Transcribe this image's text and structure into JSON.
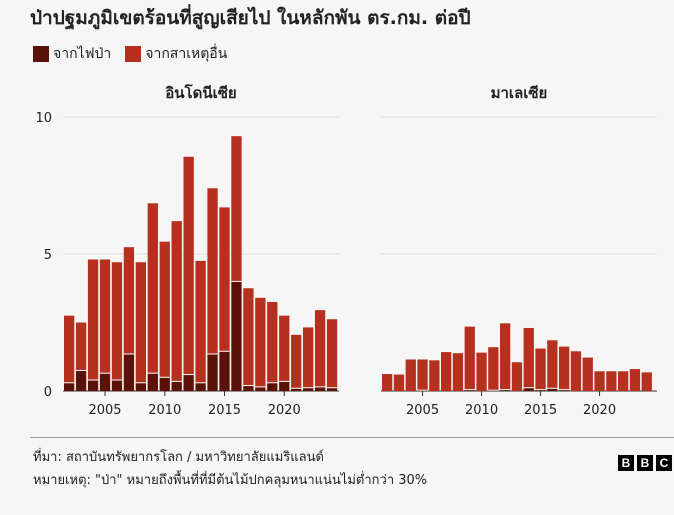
{
  "title": "ป่าปฐมภูมิเขตร้อนที่สูญเสียไป ในหลักพัน ตร.กม. ต่อปี",
  "legend": {
    "fire_label": "จากไฟป่า",
    "other_label": "จากสาเหตุอื่น"
  },
  "colors": {
    "fire": "#5a1208",
    "other": "#b5301e",
    "divider": "#ffffff",
    "grid": "#dedede"
  },
  "footer": {
    "source": "ที่มา: สถาบันทรัพยากรโลก / มหาวิทยาลัยแมริแลนด์",
    "note": "หมายเหตุ: \"ป่า\" หมายถึงพื้นที่ที่มีต้นไม้ปกคลุมหนาแน่นไม่ต่ำกว่า 30%",
    "logo_letters": [
      "B",
      "B",
      "C"
    ]
  },
  "chart_data": [
    {
      "type": "bar",
      "stacked": true,
      "title": "อินโดนีเซีย",
      "x": [
        2002,
        2003,
        2004,
        2005,
        2006,
        2007,
        2008,
        2009,
        2010,
        2011,
        2012,
        2013,
        2014,
        2015,
        2016,
        2017,
        2018,
        2019,
        2020,
        2021,
        2022,
        2023,
        2024
      ],
      "series": [
        {
          "name": "จากไฟป่า",
          "values": [
            0.3,
            0.75,
            0.4,
            0.65,
            0.4,
            1.35,
            0.3,
            0.65,
            0.5,
            0.35,
            0.6,
            0.3,
            1.35,
            1.45,
            4.0,
            0.2,
            0.15,
            0.3,
            0.35,
            0.1,
            0.12,
            0.15,
            0.12
          ]
        },
        {
          "name": "จากสาเหตุอื่น",
          "values": [
            2.45,
            1.75,
            4.4,
            4.15,
            4.3,
            3.9,
            4.4,
            6.2,
            4.95,
            5.85,
            7.95,
            4.45,
            6.05,
            5.25,
            5.3,
            3.55,
            3.25,
            2.95,
            2.4,
            1.95,
            2.2,
            2.8,
            2.5
          ]
        }
      ],
      "ylim": [
        0,
        10
      ],
      "yticks": [
        0,
        5,
        10
      ],
      "xticks": [
        2005,
        2010,
        2015,
        2020
      ],
      "grid": true
    },
    {
      "type": "bar",
      "stacked": true,
      "title": "มาเลเซีย",
      "x": [
        2002,
        2003,
        2004,
        2005,
        2006,
        2007,
        2008,
        2009,
        2010,
        2011,
        2012,
        2013,
        2014,
        2015,
        2016,
        2017,
        2018,
        2019,
        2020,
        2021,
        2022,
        2023,
        2024
      ],
      "series": [
        {
          "name": "จากไฟป่า",
          "values": [
            0.0,
            0.0,
            0.0,
            0.03,
            0.0,
            0.0,
            0.0,
            0.05,
            0.0,
            0.03,
            0.05,
            0.0,
            0.12,
            0.05,
            0.1,
            0.05,
            0.0,
            0.0,
            0.0,
            0.0,
            0.0,
            0.0,
            0.0
          ]
        },
        {
          "name": "จากสาเหตุอื่น",
          "values": [
            0.62,
            0.6,
            1.15,
            1.12,
            1.12,
            1.42,
            1.38,
            2.3,
            1.4,
            1.57,
            2.42,
            1.05,
            2.18,
            1.5,
            1.75,
            1.57,
            1.45,
            1.22,
            0.72,
            0.72,
            0.72,
            0.8,
            0.68
          ]
        }
      ],
      "ylim": [
        0,
        10
      ],
      "yticks": [
        0,
        5,
        10
      ],
      "xticks": [
        2005,
        2010,
        2015,
        2020
      ],
      "grid": true
    }
  ]
}
